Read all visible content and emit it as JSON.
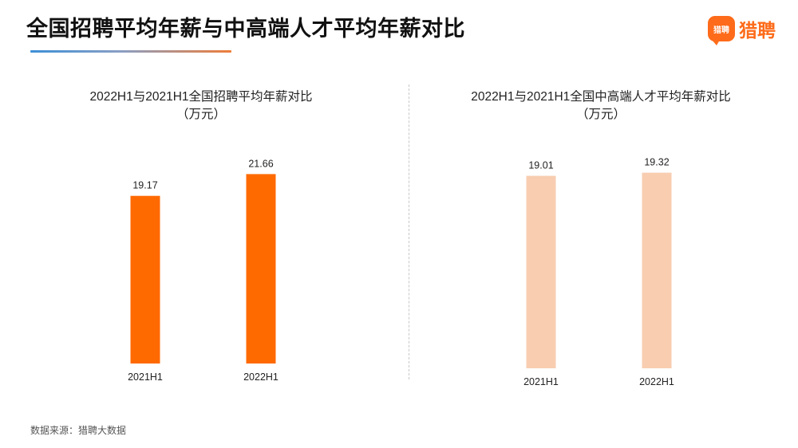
{
  "header": {
    "title": "全国招聘平均年薪与中高端人才平均年薪对比",
    "brand_icon_text": "猎聘",
    "brand_name": "猎聘",
    "brand_color": "#fe6b1a"
  },
  "chart_data": [
    {
      "type": "bar",
      "title": "2022H1与2021H1全国招聘平均年薪对比",
      "subtitle": "（万元）",
      "categories": [
        "2021H1",
        "2022H1"
      ],
      "values": [
        19.17,
        21.66
      ],
      "color": "#ff6a00",
      "grid": false,
      "legend": "none"
    },
    {
      "type": "bar",
      "title": "2022H1与2021H1全国中高端人才平均年薪对比",
      "subtitle": "（万元）",
      "categories": [
        "2021H1",
        "2022H1"
      ],
      "values": [
        19.01,
        19.32
      ],
      "color": "#f8cdb0",
      "grid": false,
      "legend": "none"
    }
  ],
  "footer": {
    "source": "数据来源：猎聘大数据"
  }
}
